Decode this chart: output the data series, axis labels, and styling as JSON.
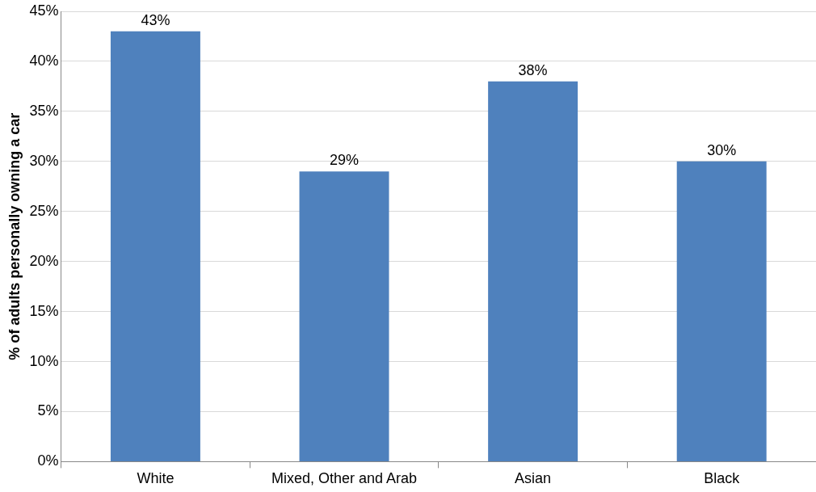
{
  "chart_data": {
    "type": "bar",
    "ylabel": "% of adults personally owning a car",
    "categories": [
      "White",
      "Mixed, Other and Arab",
      "Asian",
      "Black"
    ],
    "values": [
      43,
      29,
      38,
      30
    ],
    "value_labels": [
      "43%",
      "29%",
      "38%",
      "30%"
    ],
    "color": "#4f81bd",
    "ylim": [
      0,
      45
    ],
    "yticks": [
      {
        "value": 0,
        "label": "0%"
      },
      {
        "value": 5,
        "label": "5%"
      },
      {
        "value": 10,
        "label": "10%"
      },
      {
        "value": 15,
        "label": "15%"
      },
      {
        "value": 20,
        "label": "20%"
      },
      {
        "value": 25,
        "label": "25%"
      },
      {
        "value": 30,
        "label": "30%"
      },
      {
        "value": 35,
        "label": "35%"
      },
      {
        "value": 40,
        "label": "40%"
      },
      {
        "value": 45,
        "label": "45%"
      }
    ],
    "grid": "y",
    "legend": false
  }
}
